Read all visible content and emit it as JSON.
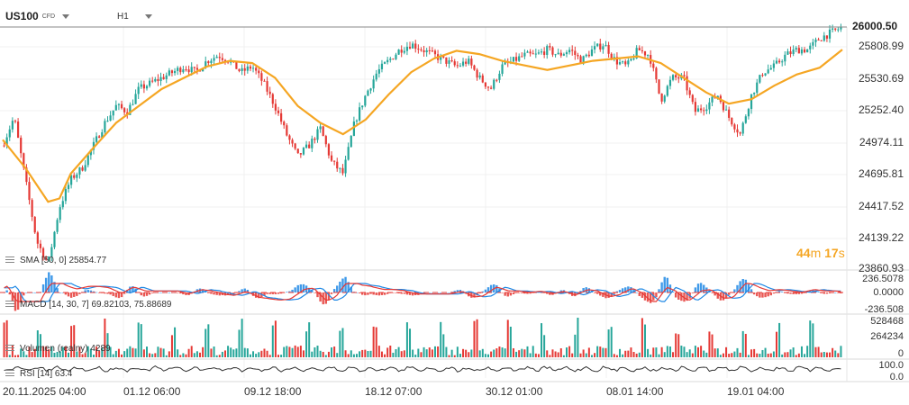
{
  "header": {
    "symbol": "US100",
    "instrument_type": "CFD",
    "timeframe": "H1"
  },
  "current_price": "26000.50",
  "countdown": {
    "minutes": "44",
    "m_unit": "m",
    "seconds": "17",
    "s_unit": "s"
  },
  "indicators": {
    "sma": "SMA [50, 0]  25854.77",
    "macd": "MACD [14, 30, 7]  69.82103,  75.88689",
    "volume": "Volumen (realny)  4289",
    "rsi": "RSI [14]  63.4"
  },
  "colors": {
    "up": "#26a69a",
    "down": "#e53935",
    "sma": "#f5a623",
    "macd_line": "#e53935",
    "signal_line": "#1e88e5",
    "rsi_line": "#333333"
  },
  "chart_data": {
    "type": "candlestick",
    "price_axis_ticks": [
      "26000.50",
      "25808.99",
      "25530.69",
      "25252.40",
      "24974.11",
      "24695.81",
      "24417.52",
      "24139.22",
      "23860.93"
    ],
    "macd_axis_ticks": [
      "236.5078",
      "0.0000",
      "-236.508"
    ],
    "volume_axis_ticks": [
      "528468",
      "264234",
      "0"
    ],
    "rsi_axis_ticks": [
      "100.0",
      "0.0"
    ],
    "x_tick_labels": [
      "20.11.2025  04:00",
      "01.12  06:00",
      "09.12  18:00",
      "18.12  07:00",
      "30.12  01:00",
      "08.01  14:00",
      "19.01  04:00"
    ],
    "ylim": [
      23860.93,
      26000.5
    ],
    "price_path": [
      [
        0,
        24950
      ],
      [
        1,
        25200
      ],
      [
        2,
        24650
      ],
      [
        3,
        24100
      ],
      [
        4,
        23900
      ],
      [
        5,
        24400
      ],
      [
        6,
        24650
      ],
      [
        7,
        24750
      ],
      [
        8,
        24950
      ],
      [
        9,
        25150
      ],
      [
        10,
        25300
      ],
      [
        11,
        25250
      ],
      [
        12,
        25450
      ],
      [
        13,
        25500
      ],
      [
        14,
        25550
      ],
      [
        15,
        25600
      ],
      [
        16,
        25650
      ],
      [
        17,
        25600
      ],
      [
        18,
        25700
      ],
      [
        19,
        25750
      ],
      [
        20,
        25700
      ],
      [
        21,
        25600
      ],
      [
        22,
        25650
      ],
      [
        23,
        25500
      ],
      [
        24,
        25300
      ],
      [
        25,
        25050
      ],
      [
        26,
        24850
      ],
      [
        27,
        24950
      ],
      [
        28,
        25100
      ],
      [
        29,
        24800
      ],
      [
        30,
        24700
      ],
      [
        31,
        25150
      ],
      [
        32,
        25400
      ],
      [
        33,
        25600
      ],
      [
        34,
        25700
      ],
      [
        35,
        25800
      ],
      [
        36,
        25850
      ],
      [
        37,
        25800
      ],
      [
        38,
        25750
      ],
      [
        39,
        25700
      ],
      [
        40,
        25650
      ],
      [
        41,
        25700
      ],
      [
        42,
        25550
      ],
      [
        43,
        25450
      ],
      [
        44,
        25650
      ],
      [
        45,
        25700
      ],
      [
        46,
        25750
      ],
      [
        47,
        25750
      ],
      [
        48,
        25800
      ],
      [
        49,
        25750
      ],
      [
        50,
        25800
      ],
      [
        51,
        25700
      ],
      [
        52,
        25800
      ],
      [
        53,
        25850
      ],
      [
        54,
        25700
      ],
      [
        55,
        25650
      ],
      [
        56,
        25800
      ],
      [
        57,
        25750
      ],
      [
        58,
        25350
      ],
      [
        59,
        25550
      ],
      [
        60,
        25550
      ],
      [
        61,
        25250
      ],
      [
        62,
        25300
      ],
      [
        63,
        25400
      ],
      [
        64,
        25200
      ],
      [
        65,
        25050
      ],
      [
        66,
        25400
      ],
      [
        67,
        25600
      ],
      [
        68,
        25650
      ],
      [
        69,
        25750
      ],
      [
        70,
        25800
      ],
      [
        71,
        25800
      ],
      [
        72,
        25900
      ],
      [
        73,
        25950
      ],
      [
        74,
        26000
      ]
    ],
    "sma_path": [
      [
        0,
        25000
      ],
      [
        2,
        24750
      ],
      [
        4,
        24450
      ],
      [
        5,
        24480
      ],
      [
        6,
        24700
      ],
      [
        8,
        24930
      ],
      [
        10,
        25150
      ],
      [
        12,
        25300
      ],
      [
        14,
        25450
      ],
      [
        16,
        25550
      ],
      [
        18,
        25650
      ],
      [
        20,
        25700
      ],
      [
        22,
        25680
      ],
      [
        24,
        25550
      ],
      [
        26,
        25300
      ],
      [
        28,
        25150
      ],
      [
        30,
        25050
      ],
      [
        32,
        25180
      ],
      [
        34,
        25400
      ],
      [
        36,
        25600
      ],
      [
        38,
        25720
      ],
      [
        40,
        25790
      ],
      [
        42,
        25760
      ],
      [
        44,
        25700
      ],
      [
        46,
        25660
      ],
      [
        48,
        25620
      ],
      [
        50,
        25660
      ],
      [
        52,
        25700
      ],
      [
        54,
        25720
      ],
      [
        56,
        25740
      ],
      [
        58,
        25680
      ],
      [
        60,
        25550
      ],
      [
        62,
        25420
      ],
      [
        64,
        25320
      ],
      [
        66,
        25360
      ],
      [
        68,
        25480
      ],
      [
        70,
        25580
      ],
      [
        72,
        25640
      ],
      [
        74,
        25800
      ]
    ]
  }
}
